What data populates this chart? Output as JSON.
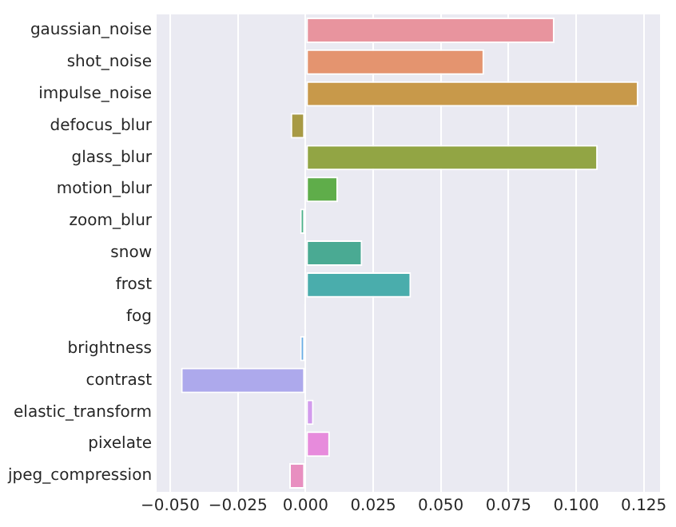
{
  "chart_data": {
    "type": "bar",
    "orientation": "horizontal",
    "grid": "x",
    "categories": [
      "gaussian_noise",
      "shot_noise",
      "impulse_noise",
      "defocus_blur",
      "glass_blur",
      "motion_blur",
      "zoom_blur",
      "snow",
      "frost",
      "fog",
      "brightness",
      "contrast",
      "elastic_transform",
      "pixelate",
      "jpeg_compression"
    ],
    "values": [
      0.092,
      0.066,
      0.123,
      -0.0055,
      0.108,
      0.012,
      -0.002,
      0.021,
      0.039,
      -0.0005,
      -0.002,
      -0.046,
      0.003,
      0.009,
      -0.006
    ],
    "colors": [
      "#e8949e",
      "#e4946f",
      "#c8994a",
      "#a89a44",
      "#92a544",
      "#5fad4a",
      "#4db38a",
      "#4aaa93",
      "#4aadac",
      "#ffffff",
      "#6aaee5",
      "#ada9ec",
      "#d39bed",
      "#e78bdc",
      "#e88fc0"
    ],
    "xlim": [
      -0.055,
      0.131
    ],
    "xticks": [
      {
        "value": -0.05,
        "label": "−0.050"
      },
      {
        "value": -0.025,
        "label": "−0.025"
      },
      {
        "value": 0,
        "label": "0.000"
      },
      {
        "value": 0.025,
        "label": "0.025"
      },
      {
        "value": 0.05,
        "label": "0.050"
      },
      {
        "value": 0.075,
        "label": "0.075"
      },
      {
        "value": 0.1,
        "label": "0.100"
      },
      {
        "value": 0.125,
        "label": "0.125"
      }
    ]
  }
}
